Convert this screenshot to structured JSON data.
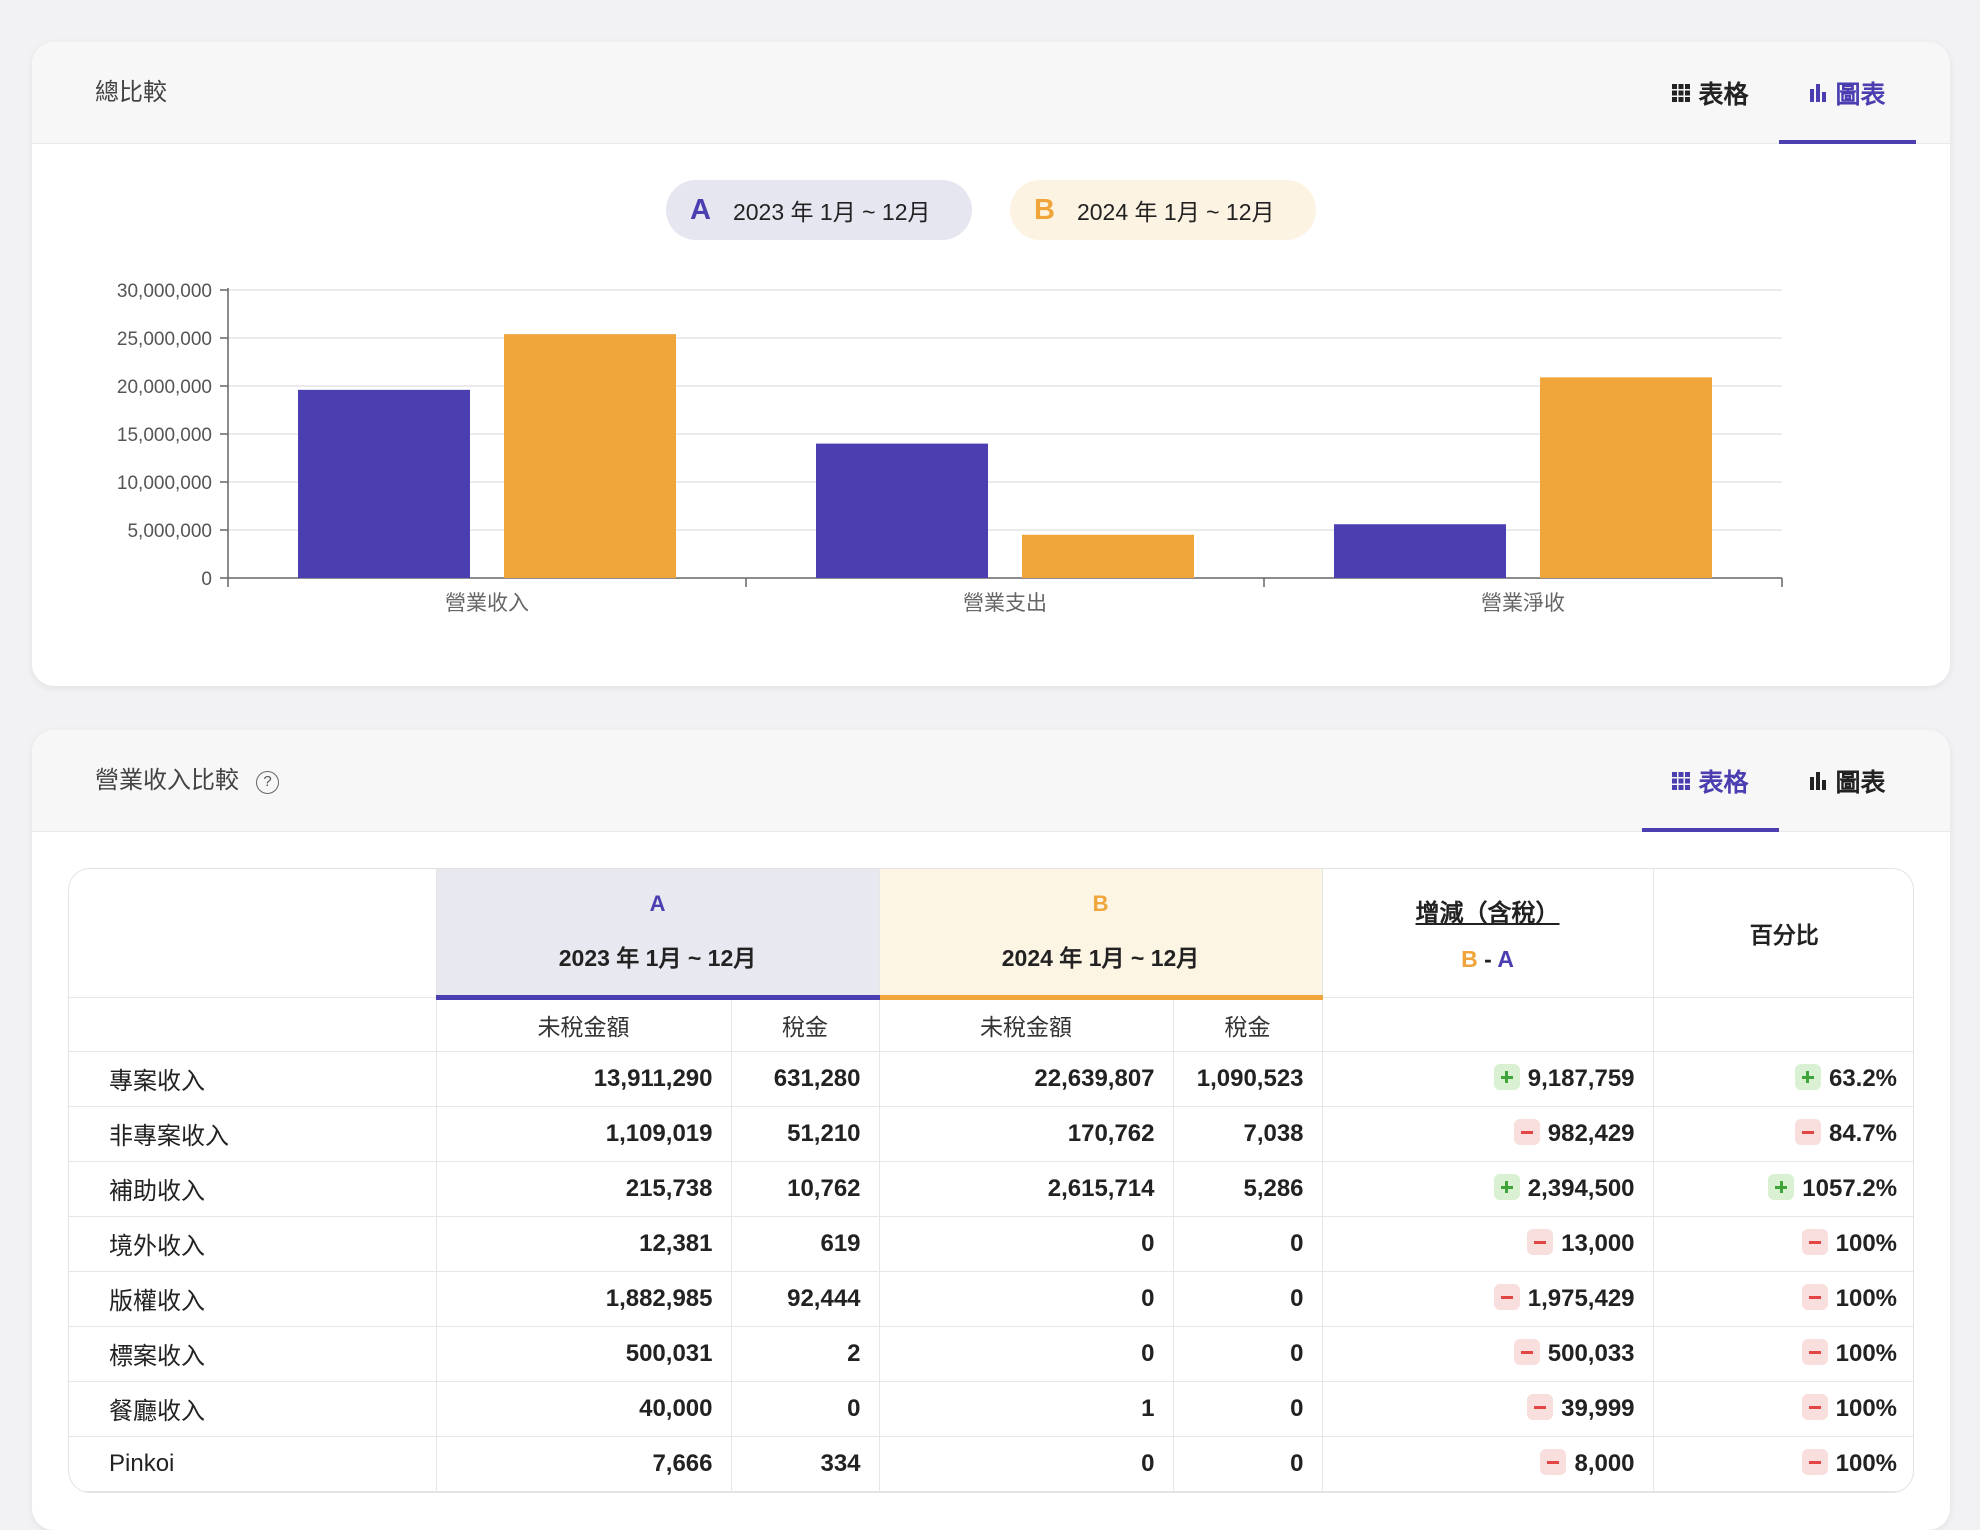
{
  "card1": {
    "title": "總比較",
    "tabs": [
      {
        "label": "表格",
        "icon": "grid-icon",
        "active": false
      },
      {
        "label": "圖表",
        "icon": "bar-chart-icon",
        "active": true
      }
    ],
    "legend": [
      {
        "letter": "A",
        "label": "2023 年 1月 ~ 12月",
        "color": "#4a3eb0"
      },
      {
        "letter": "B",
        "label": "2024 年 1月 ~ 12月",
        "color": "#f0a53b"
      }
    ]
  },
  "chart_data": {
    "type": "bar",
    "categories": [
      "營業收入",
      "營業支出",
      "營業淨收"
    ],
    "series": [
      {
        "name": "A",
        "values": [
          19600000,
          14000000,
          5600000
        ],
        "color": "#4a3eb0"
      },
      {
        "name": "B",
        "values": [
          25400000,
          4500000,
          20900000
        ],
        "color": "#f0a53b"
      }
    ],
    "yticks": [
      "0",
      "5,000,000",
      "10,000,000",
      "15,000,000",
      "20,000,000",
      "25,000,000",
      "30,000,000"
    ],
    "ylim": [
      0,
      30000000
    ],
    "grid": true
  },
  "card2": {
    "title": "營業收入比較",
    "help_icon": "?",
    "tabs": [
      {
        "label": "表格",
        "icon": "grid-icon",
        "active": true
      },
      {
        "label": "圖表",
        "icon": "bar-chart-icon",
        "active": false
      }
    ],
    "table": {
      "col_a": {
        "letter": "A",
        "period": "2023 年 1月 ~ 12月"
      },
      "col_b": {
        "letter": "B",
        "period": "2024 年 1月 ~ 12月"
      },
      "diff": {
        "title": "增減（含稅）",
        "b": "B",
        "dash": " - ",
        "a": "A"
      },
      "percent": "百分比",
      "sub_headers": {
        "untaxed": "未稅金額",
        "tax": "稅金"
      },
      "rows": [
        {
          "label": "專案收入",
          "a_untaxed": "13,911,290",
          "a_tax": "631,280",
          "b_untaxed": "22,639,807",
          "b_tax": "1,090,523",
          "diff_sign": "plus",
          "diff": "9,187,759",
          "pct_sign": "plus",
          "pct": "63.2%"
        },
        {
          "label": "非專案收入",
          "a_untaxed": "1,109,019",
          "a_tax": "51,210",
          "b_untaxed": "170,762",
          "b_tax": "7,038",
          "diff_sign": "minus",
          "diff": "982,429",
          "pct_sign": "minus",
          "pct": "84.7%"
        },
        {
          "label": "補助收入",
          "a_untaxed": "215,738",
          "a_tax": "10,762",
          "b_untaxed": "2,615,714",
          "b_tax": "5,286",
          "diff_sign": "plus",
          "diff": "2,394,500",
          "pct_sign": "plus",
          "pct": "1057.2%"
        },
        {
          "label": "境外收入",
          "a_untaxed": "12,381",
          "a_tax": "619",
          "b_untaxed": "0",
          "b_tax": "0",
          "diff_sign": "minus",
          "diff": "13,000",
          "pct_sign": "minus",
          "pct": "100%"
        },
        {
          "label": "版權收入",
          "a_untaxed": "1,882,985",
          "a_tax": "92,444",
          "b_untaxed": "0",
          "b_tax": "0",
          "diff_sign": "minus",
          "diff": "1,975,429",
          "pct_sign": "minus",
          "pct": "100%"
        },
        {
          "label": "標案收入",
          "a_untaxed": "500,031",
          "a_tax": "2",
          "b_untaxed": "0",
          "b_tax": "0",
          "diff_sign": "minus",
          "diff": "500,033",
          "pct_sign": "minus",
          "pct": "100%"
        },
        {
          "label": "餐廳收入",
          "a_untaxed": "40,000",
          "a_tax": "0",
          "b_untaxed": "1",
          "b_tax": "0",
          "diff_sign": "minus",
          "diff": "39,999",
          "pct_sign": "minus",
          "pct": "100%"
        },
        {
          "label": "Pinkoi",
          "a_untaxed": "7,666",
          "a_tax": "334",
          "b_untaxed": "0",
          "b_tax": "0",
          "diff_sign": "minus",
          "diff": "8,000",
          "pct_sign": "minus",
          "pct": "100%"
        }
      ]
    }
  }
}
